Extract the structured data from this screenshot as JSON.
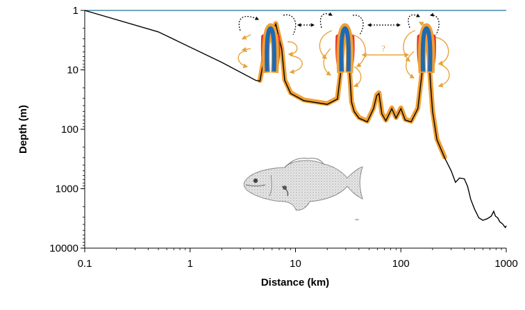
{
  "chart_data": {
    "type": "line",
    "xlabel": "Distance (km)",
    "ylabel": "Depth (m)",
    "x_scale": "log",
    "y_scale": "log",
    "y_inverted": true,
    "xlim": [
      0.1,
      1000
    ],
    "ylim": [
      1,
      10000
    ],
    "x_ticks": [
      0.1,
      1,
      10,
      100,
      1000
    ],
    "x_tick_labels": [
      "0.1",
      "1",
      "10",
      "100",
      "1000"
    ],
    "y_ticks": [
      1,
      10,
      100,
      1000,
      10000
    ],
    "y_tick_labels": [
      "1",
      "10",
      "100",
      "1000",
      "10000"
    ],
    "surface_depth": 1,
    "bathymetry": {
      "x": [
        0.1,
        0.5,
        2,
        4.2,
        4.6,
        5.2,
        6.5,
        7.4,
        7.9,
        9,
        12,
        20,
        25,
        27,
        28.5,
        30,
        31,
        32.5,
        34,
        36,
        40,
        48,
        55,
        59,
        62,
        66,
        72,
        82,
        90,
        100,
        110,
        125,
        145,
        160,
        172,
        180,
        190,
        200,
        220,
        260,
        300,
        330,
        360,
        400,
        430,
        460,
        500,
        550,
        600,
        660,
        720,
        760,
        790,
        830,
        870,
        920,
        980,
        1030
      ],
      "y": [
        1,
        2.3,
        7.5,
        15,
        15.5,
        4.5,
        1.7,
        4.5,
        15,
        25,
        33,
        38,
        31,
        10,
        3,
        1.9,
        2.6,
        10,
        35,
        50,
        65,
        75,
        45,
        27,
        25,
        55,
        72,
        45,
        65,
        45,
        70,
        75,
        45,
        10,
        2,
        2.5,
        15,
        50,
        150,
        300,
        500,
        780,
        660,
        680,
        920,
        1500,
        2200,
        3100,
        3400,
        3200,
        2900,
        2400,
        2900,
        3100,
        3600,
        3900,
        4500,
        4200
      ]
    },
    "sites": [
      {
        "x": 5.8,
        "depth": 1.9
      },
      {
        "x": 29.5,
        "depth": 1.9
      },
      {
        "x": 175,
        "depth": 1.9
      }
    ],
    "annotations": [
      "?"
    ],
    "legend": "none",
    "grid": false
  },
  "colors": {
    "axis": "#000000",
    "surface_line": "#1f6f9a",
    "bathymetry": "#000000",
    "habitat_band": "#f0a033",
    "water_column": "#1f69b4",
    "red_band": "#e8302a",
    "movement_arrow": "#e8a33a",
    "dispersal_arrow": "#000000"
  },
  "icons": [
    "fish-illustration-icon"
  ]
}
